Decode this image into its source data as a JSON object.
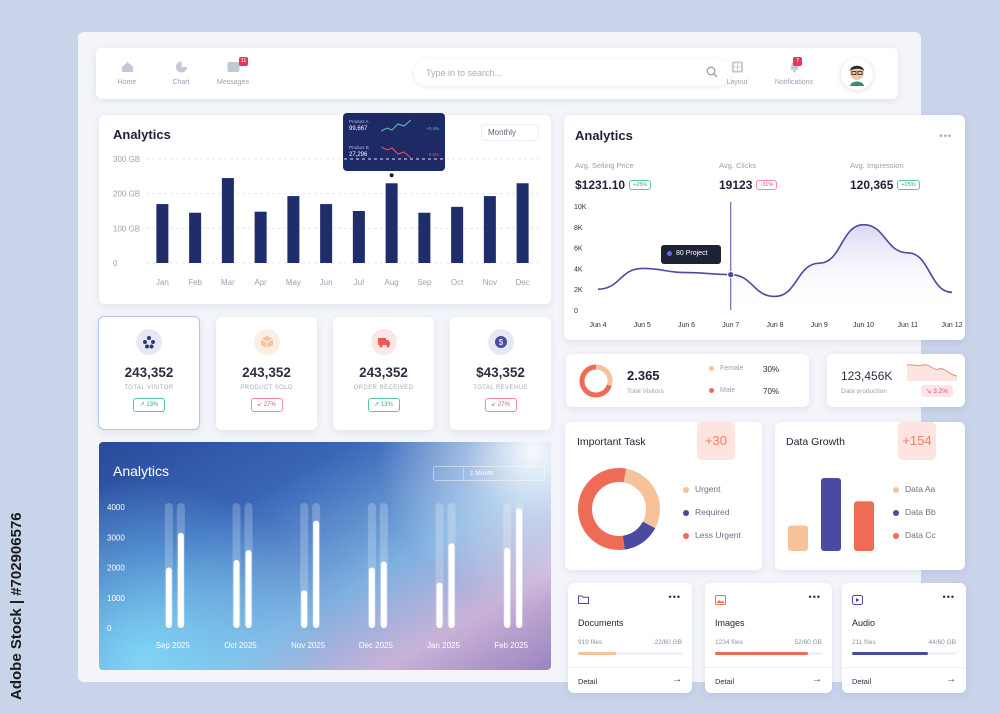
{
  "nav": {
    "items": [
      {
        "label": "Home"
      },
      {
        "label": "Chart"
      },
      {
        "label": "Messages",
        "badge": "11"
      }
    ],
    "right_items": [
      {
        "label": "Layout"
      },
      {
        "label": "Notifications",
        "badge": "7"
      }
    ],
    "search_placeholder": "Type in to search..."
  },
  "bar_card": {
    "title": "Analytics",
    "period": "Monthly",
    "tooltip": {
      "rows": [
        {
          "label": "Product A",
          "value": "99,667",
          "change": "+0.4%"
        },
        {
          "label": "Product B",
          "value": "27,296",
          "change": "-0.5%"
        }
      ]
    }
  },
  "stats": [
    {
      "value": "243,352",
      "label": "TOTAL VISITOR",
      "change": "13%",
      "trend": "up"
    },
    {
      "value": "243,352",
      "label": "PRODUCT SOLD",
      "change": "27%",
      "trend": "down"
    },
    {
      "value": "243,352",
      "label": "ORDER RECEIVED",
      "change": "13%",
      "trend": "up"
    },
    {
      "value": "$43,352",
      "label": "TOTAL REVENUE",
      "change": "27%",
      "trend": "down"
    }
  ],
  "gradient_card": {
    "title": "Analytics",
    "toggles": [
      "1 Month"
    ]
  },
  "line_card": {
    "title": "Analytics",
    "metrics": [
      {
        "label": "Avg. Selling Price",
        "value": "$1231.10",
        "change": "+25%",
        "trend": "up"
      },
      {
        "label": "Avg. Clicks",
        "value": "19123",
        "change": "-31%",
        "trend": "down"
      },
      {
        "label": "Avg. Impression",
        "value": "120,365",
        "change": "+25%",
        "trend": "up"
      }
    ],
    "tooltip": "80 Project"
  },
  "visitors_card": {
    "value": "2.365",
    "label": "Total Visitors",
    "legend": [
      {
        "label": "Female",
        "value": "30%",
        "color": "#f5c29a"
      },
      {
        "label": "Male",
        "value": "70%",
        "color": "#ee6b55"
      }
    ]
  },
  "production_card": {
    "value": "123,456K",
    "label": "Data production",
    "change": "3.2%"
  },
  "task_card": {
    "title": "Important Task",
    "badge": "+30",
    "legend": [
      {
        "label": "Urgent",
        "color": "#f5c29a"
      },
      {
        "label": "Required",
        "color": "#4a4aa0"
      },
      {
        "label": "Less Urgent",
        "color": "#ee6b55"
      }
    ]
  },
  "growth_card": {
    "title": "Data Growth",
    "badge": "+154",
    "legend": [
      {
        "label": "Data Aa",
        "color": "#f5c29a"
      },
      {
        "label": "Data Bb",
        "color": "#4a4aa0"
      },
      {
        "label": "Data Cc",
        "color": "#ee6b55"
      }
    ]
  },
  "files": [
    {
      "name": "Documents",
      "files": "919 files",
      "size": "22/60 GB",
      "detail": "Detail",
      "color": "#f5c29a",
      "fill": 0.37
    },
    {
      "name": "Images",
      "files": "1234 files",
      "size": "52/60 GB",
      "detail": "Detail",
      "color": "#ee6b55",
      "fill": 0.87
    },
    {
      "name": "Audio",
      "files": "211 files",
      "size": "44/60 GB",
      "detail": "Detail",
      "color": "#4a4aa0",
      "fill": 0.73
    }
  ],
  "watermark": "Adobe Stock | #702906576",
  "chart_data": [
    {
      "type": "bar",
      "title": "Analytics",
      "categories": [
        "Jan",
        "Feb",
        "Mar",
        "Apr",
        "May",
        "Jun",
        "Jul",
        "Aug",
        "Sep",
        "Oct",
        "Nov",
        "Dec"
      ],
      "yticks": [
        "300 GB",
        "200 GB",
        "100 GB",
        "0"
      ],
      "ylim": [
        0,
        300
      ],
      "values": [
        170,
        145,
        245,
        148,
        193,
        170,
        150,
        230,
        145,
        162,
        193,
        230
      ],
      "color": "#1f2d6b"
    },
    {
      "type": "line",
      "title": "Analytics",
      "x": [
        "Jun 4",
        "Jun 5",
        "Jun 6",
        "Jun 7",
        "Jun 8",
        "Jun 9",
        "Jun 10",
        "Jun 11",
        "Jun 12"
      ],
      "yticks": [
        "10K",
        "8K",
        "6K",
        "4K",
        "2K",
        "0"
      ],
      "ylim": [
        0,
        10000
      ],
      "values": [
        2000,
        4000,
        3600,
        3400,
        1300,
        4500,
        8200,
        5500,
        1700
      ],
      "highlight": {
        "x": "Jun 7",
        "value": 3400,
        "label": "80 Project"
      },
      "color": "#4a4aa0"
    },
    {
      "type": "bar",
      "title": "Analytics",
      "categories": [
        "Sep 2025",
        "Oct 2025",
        "Nov 2025",
        "Dec 2025",
        "Jan 2025",
        "Feb 2025"
      ],
      "yticks": [
        "4000",
        "3000",
        "2000",
        "1000",
        "0"
      ],
      "ylim": [
        0,
        4000
      ],
      "series": [
        {
          "values": [
            2000,
            2250,
            1250,
            2000,
            1500,
            2650
          ]
        },
        {
          "values": [
            3150,
            2580,
            3550,
            2200,
            2800,
            3950
          ]
        }
      ]
    },
    {
      "type": "pie",
      "title": "Total Visitors",
      "labels": [
        "Female",
        "Male"
      ],
      "values": [
        30,
        70
      ]
    },
    {
      "type": "pie",
      "title": "Important Task",
      "labels": [
        "Urgent",
        "Required",
        "Less Urgent"
      ],
      "values": [
        30,
        15,
        55
      ]
    },
    {
      "type": "bar",
      "title": "Data Growth",
      "categories": [
        "Data Aa",
        "Data Bb",
        "Data Cc"
      ],
      "values": [
        35,
        100,
        68
      ]
    }
  ]
}
